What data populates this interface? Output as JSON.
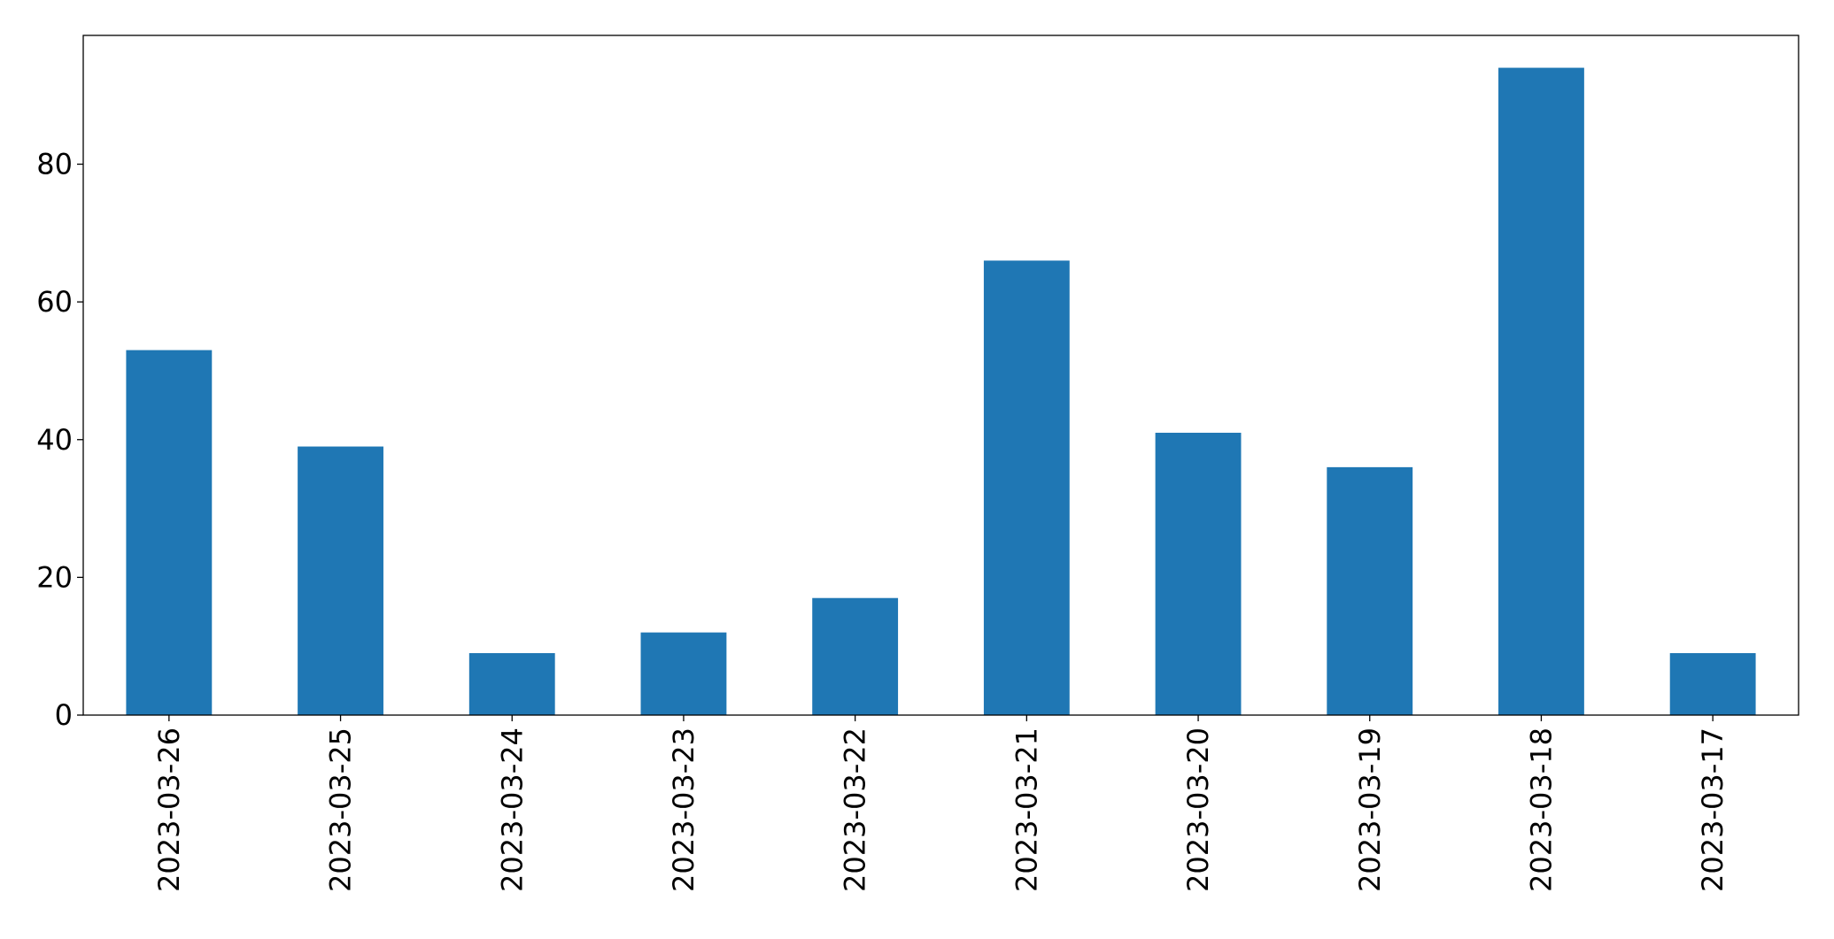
{
  "chart_data": {
    "type": "bar",
    "categories": [
      "2023-03-26",
      "2023-03-25",
      "2023-03-24",
      "2023-03-23",
      "2023-03-22",
      "2023-03-21",
      "2023-03-20",
      "2023-03-19",
      "2023-03-18",
      "2023-03-17"
    ],
    "values": [
      53,
      39,
      9,
      12,
      17,
      66,
      41,
      36,
      94,
      9
    ],
    "color": "#1f77b4",
    "ylim": [
      0,
      98.7
    ],
    "yticks": [
      0,
      20,
      40,
      60,
      80
    ],
    "grid": false
  }
}
